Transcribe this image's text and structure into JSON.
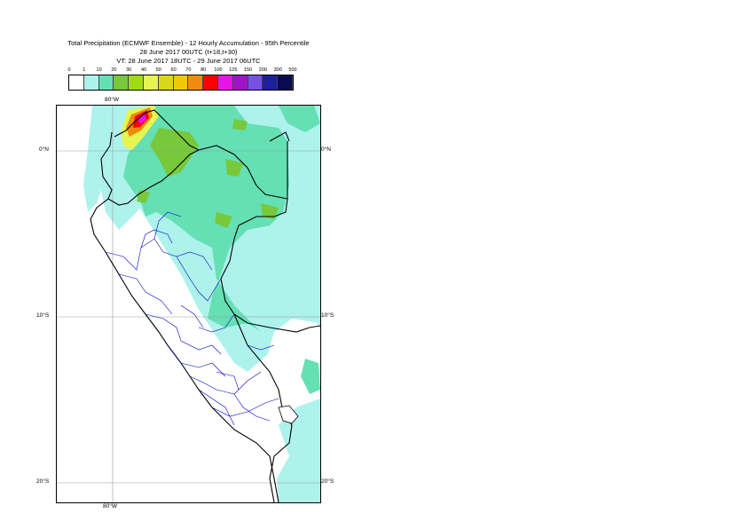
{
  "title": {
    "line1": "Total Precipitation (ECMWF Ensemble) - 12 Hourly Accumulation - 95th Percentile",
    "line2": "28 June 2017 00UTC (t+18,t+30)",
    "line3": "VT: 28 June 2017 18UTC - 29 June 2017 06UTC"
  },
  "legend": {
    "thresholds": [
      "0",
      "1",
      "10",
      "20",
      "30",
      "40",
      "50",
      "60",
      "70",
      "80",
      "100",
      "125",
      "150",
      "200",
      "300",
      "500"
    ],
    "colors": [
      "#ffffff",
      "#aef2ec",
      "#64e0b4",
      "#78c83c",
      "#a0dc14",
      "#e6f550",
      "#d8d818",
      "#f0c80a",
      "#f08c0a",
      "#ff0000",
      "#e614e6",
      "#a014c8",
      "#7850e6",
      "#1e1ea0",
      "#0a0a50"
    ]
  },
  "map": {
    "lat_labels": [
      "0°N",
      "10°S",
      "20°S"
    ],
    "lon_labels": [
      "80°W",
      "80°W"
    ],
    "colors": {
      "light": "#aef2ec",
      "medium": "#64e0b4",
      "green": "#78c83c",
      "yellow": "#e6f550",
      "orange": "#f08c0a",
      "red": "#ff0000",
      "magenta": "#e614e6",
      "coast": "#000000",
      "admin": "#0000cc",
      "grid": "#999999"
    }
  }
}
